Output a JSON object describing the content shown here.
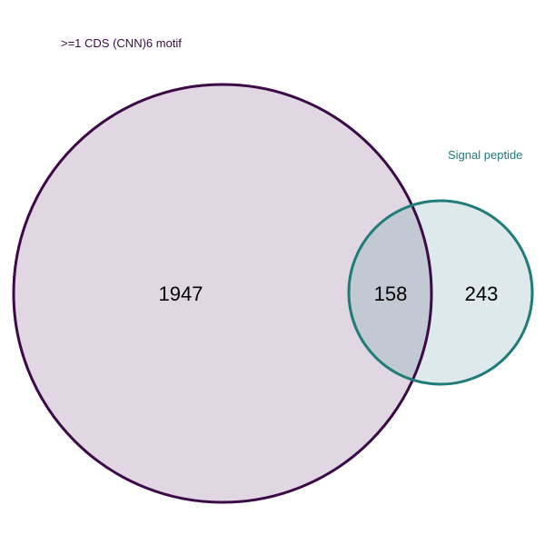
{
  "sets": [
    {
      "name": ">=1 CDS (CNN)6 motif",
      "only_count": "1947",
      "stroke_color": "#3b0a47",
      "fill_color": "#e1d7e3"
    },
    {
      "name": "Signal peptide",
      "only_count": "243",
      "stroke_color": "#1f7c78",
      "fill_color": "#dde9ea"
    }
  ],
  "intersection": {
    "count": "158",
    "fill_color": "#c3c9d3"
  }
}
